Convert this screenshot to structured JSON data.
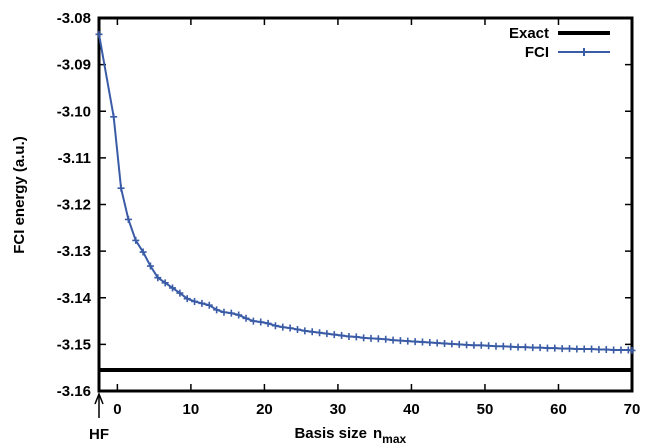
{
  "chart_data": {
    "type": "line",
    "xlabel": "Basis size",
    "xlabel_symbol": "n",
    "xlabel_subscript": "max",
    "ylabel": "FCI energy (a.u.)",
    "xlim": [
      -2.5,
      70
    ],
    "ylim": [
      -3.16,
      -3.08
    ],
    "xticks": [
      0,
      10,
      20,
      30,
      40,
      50,
      60,
      70
    ],
    "xtick_labels": [
      "0",
      "10",
      "20",
      "30",
      "40",
      "50",
      "60",
      "70"
    ],
    "yticks": [
      -3.16,
      -3.15,
      -3.14,
      -3.13,
      -3.12,
      -3.11,
      -3.1,
      -3.09,
      -3.08
    ],
    "ytick_labels": [
      "-3.16",
      "-3.15",
      "-3.14",
      "-3.13",
      "-3.12",
      "-3.11",
      "-3.10",
      "-3.09",
      "-3.08"
    ],
    "annotation": {
      "text": "HF",
      "x": -2.5
    },
    "legend_position": "top-right",
    "grid": false,
    "series": [
      {
        "name": "Exact",
        "style": "hline",
        "color": "#000000",
        "y": -3.1555
      },
      {
        "name": "FCI",
        "style": "line+cross",
        "color": "#3a5ba6",
        "x": [
          -2.5,
          -0.5,
          0.5,
          1.5,
          2.5,
          3.5,
          4.5,
          5.5,
          6.5,
          7.5,
          8.5,
          9.5,
          10.5,
          11.5,
          12.5,
          13.5,
          14.5,
          15.5,
          16.5,
          17.5,
          18.5,
          19.5,
          20.5,
          21.5,
          22.5,
          23.5,
          24.5,
          25.5,
          26.5,
          27.5,
          28.5,
          29.5,
          30.5,
          31.5,
          32.5,
          33.5,
          34.5,
          35.5,
          36.5,
          37.5,
          38.5,
          39.5,
          40.5,
          41.5,
          42.5,
          43.5,
          44.5,
          45.5,
          46.5,
          47.5,
          48.5,
          49.5,
          50.5,
          51.5,
          52.5,
          53.5,
          54.5,
          55.5,
          56.5,
          57.5,
          58.5,
          59.5,
          60.5,
          61.5,
          62.5,
          63.5,
          64.5,
          65.5,
          66.5,
          67.5,
          68.5,
          69.5,
          70
        ],
        "y": [
          -3.0835,
          -3.1012,
          -3.1165,
          -3.1232,
          -3.1277,
          -3.1302,
          -3.1332,
          -3.1357,
          -3.1368,
          -3.1379,
          -3.139,
          -3.1402,
          -3.1408,
          -3.1412,
          -3.1416,
          -3.1426,
          -3.1431,
          -3.1433,
          -3.1437,
          -3.1444,
          -3.145,
          -3.1452,
          -3.1455,
          -3.146,
          -3.1463,
          -3.1465,
          -3.1468,
          -3.1471,
          -3.1473,
          -3.1475,
          -3.1477,
          -3.1479,
          -3.1481,
          -3.1483,
          -3.1484,
          -3.1486,
          -3.1487,
          -3.1488,
          -3.1489,
          -3.1491,
          -3.1492,
          -3.1493,
          -3.1494,
          -3.1495,
          -3.1496,
          -3.1497,
          -3.1498,
          -3.1499,
          -3.15,
          -3.1501,
          -3.1502,
          -3.1502,
          -3.1503,
          -3.1504,
          -3.1504,
          -3.1505,
          -3.1506,
          -3.1506,
          -3.1507,
          -3.1507,
          -3.1508,
          -3.1508,
          -3.1509,
          -3.1509,
          -3.151,
          -3.151,
          -3.151,
          -3.1511,
          -3.1511,
          -3.1512,
          -3.1512,
          -3.1512,
          -3.1513
        ]
      }
    ]
  }
}
